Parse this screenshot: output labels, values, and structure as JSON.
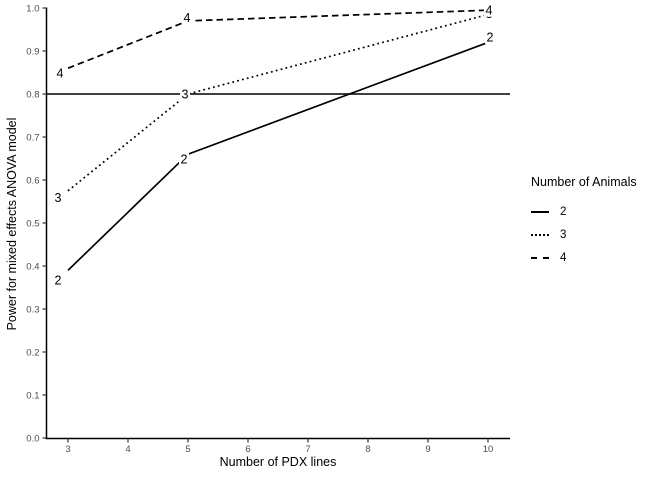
{
  "chart_data": {
    "type": "line",
    "title": "",
    "xlabel": "Number of PDX lines",
    "ylabel": "Power for mixed effects ANOVA model",
    "xlim": [
      3,
      10
    ],
    "ylim": [
      0.0,
      1.0
    ],
    "x_ticks": [
      "3",
      "4",
      "5",
      "6",
      "7",
      "8",
      "9",
      "10"
    ],
    "y_ticks": [
      "0.0",
      "0.1",
      "0.2",
      "0.3",
      "0.4",
      "0.5",
      "0.6",
      "0.7",
      "0.8",
      "0.9",
      "1.0"
    ],
    "grid": "off",
    "reference_line_y": 0.8,
    "x": [
      3,
      5,
      10
    ],
    "series": [
      {
        "name": "2",
        "style": "solid",
        "values": [
          0.39,
          0.66,
          0.92
        ]
      },
      {
        "name": "3",
        "style": "dotted",
        "values": [
          0.575,
          0.8,
          0.985
        ]
      },
      {
        "name": "4",
        "style": "dashed",
        "values": [
          0.86,
          0.97,
          0.995
        ]
      }
    ],
    "point_labels": "series name shown at each data point",
    "legend": {
      "title": "Number of Animals",
      "position": "right",
      "entries": [
        {
          "label": "2",
          "style": "solid"
        },
        {
          "label": "3",
          "style": "dotted"
        },
        {
          "label": "4",
          "style": "dashed"
        }
      ]
    },
    "colors": {
      "line": "#000000",
      "axis_text": "#4d4d4d",
      "axis_line": "#000000",
      "background": "#ffffff"
    }
  }
}
